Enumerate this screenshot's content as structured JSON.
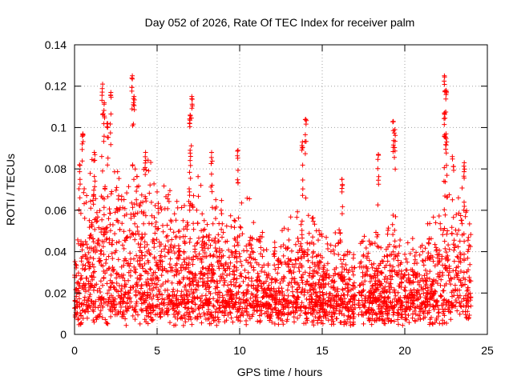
{
  "chart_data": {
    "type": "scatter",
    "title": "Day 052 of 2026, Rate Of TEC Index for receiver palm",
    "xlabel": "GPS time / hours",
    "ylabel": "ROTI / TECUs",
    "xlim": [
      0,
      25
    ],
    "ylim": [
      0,
      0.14
    ],
    "x_ticks": [
      0,
      5,
      10,
      15,
      20,
      25
    ],
    "y_ticks": [
      0,
      0.02,
      0.04,
      0.06,
      0.08,
      0.1,
      0.12,
      0.14
    ],
    "x_tick_labels": [
      "0",
      "5",
      "10",
      "15",
      "20",
      "25"
    ],
    "y_tick_labels": [
      "0",
      "0.02",
      "0.04",
      "0.06",
      "0.08",
      "0.1",
      "0.12",
      "0.14"
    ],
    "grid": true,
    "marker": "+",
    "color": "#ff0000",
    "data_gap_hours": [
      17.0,
      17.2
    ],
    "peaks": [
      {
        "x": 0.3,
        "y": 0.082
      },
      {
        "x": 0.5,
        "y": 0.097
      },
      {
        "x": 1.2,
        "y": 0.088
      },
      {
        "x": 1.7,
        "y": 0.121
      },
      {
        "x": 1.8,
        "y": 0.112
      },
      {
        "x": 2.0,
        "y": 0.102
      },
      {
        "x": 2.2,
        "y": 0.117
      },
      {
        "x": 3.5,
        "y": 0.125
      },
      {
        "x": 3.6,
        "y": 0.115
      },
      {
        "x": 4.3,
        "y": 0.088
      },
      {
        "x": 7.1,
        "y": 0.115
      },
      {
        "x": 7.0,
        "y": 0.106
      },
      {
        "x": 7.0,
        "y": 0.089
      },
      {
        "x": 8.3,
        "y": 0.088
      },
      {
        "x": 9.9,
        "y": 0.089
      },
      {
        "x": 14.0,
        "y": 0.104
      },
      {
        "x": 13.8,
        "y": 0.093
      },
      {
        "x": 16.2,
        "y": 0.075
      },
      {
        "x": 18.4,
        "y": 0.087
      },
      {
        "x": 19.3,
        "y": 0.103
      },
      {
        "x": 19.4,
        "y": 0.099
      },
      {
        "x": 22.4,
        "y": 0.125
      },
      {
        "x": 22.5,
        "y": 0.118
      },
      {
        "x": 22.4,
        "y": 0.107
      },
      {
        "x": 22.5,
        "y": 0.097
      },
      {
        "x": 23.6,
        "y": 0.083
      }
    ],
    "envelope_hours": [
      0,
      0.5,
      1,
      1.5,
      2,
      2.5,
      3,
      3.5,
      4,
      4.5,
      5,
      5.5,
      6,
      6.5,
      7,
      7.5,
      8,
      8.5,
      9,
      9.5,
      10,
      10.5,
      11,
      11.5,
      12,
      12.5,
      13,
      13.5,
      14,
      14.5,
      15,
      15.5,
      16,
      16.5,
      17,
      17.5,
      18,
      18.5,
      19,
      19.5,
      20,
      20.5,
      21,
      21.5,
      22,
      22.5,
      23,
      23.5,
      24
    ],
    "envelope_roti": [
      0.03,
      0.065,
      0.072,
      0.075,
      0.075,
      0.08,
      0.07,
      0.08,
      0.075,
      0.072,
      0.068,
      0.07,
      0.065,
      0.062,
      0.068,
      0.065,
      0.058,
      0.06,
      0.055,
      0.055,
      0.058,
      0.065,
      0.05,
      0.042,
      0.04,
      0.045,
      0.048,
      0.06,
      0.068,
      0.052,
      0.045,
      0.048,
      0.055,
      0.04,
      0.035,
      0.05,
      0.04,
      0.045,
      0.055,
      0.048,
      0.042,
      0.045,
      0.04,
      0.05,
      0.06,
      0.075,
      0.078,
      0.07,
      0.06
    ],
    "baseline_roti": [
      0.004,
      0.016
    ]
  }
}
